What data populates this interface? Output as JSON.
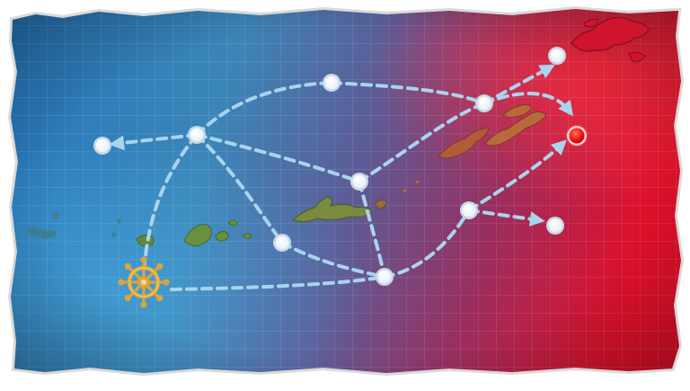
{
  "map": {
    "start_icon": "ship-wheel-icon",
    "boss_icon": "boss-node-icon",
    "colors": {
      "sea_left": "#2a7fc2",
      "sea_mid": "#6a4f8f",
      "sea_right": "#e0102a",
      "route": "#a9d4ee",
      "node_fill": "#ffffff",
      "node_ring": "#c8d8e6",
      "boss": "#ff2a2a",
      "wheel": "#d9a53f",
      "island_green": "#5f8a3e",
      "island_orange": "#b86a3a",
      "island_red": "#c8122e"
    },
    "nodes": [
      {
        "id": "start",
        "type": "start"
      },
      {
        "id": "n-west",
        "type": "node"
      },
      {
        "id": "n-junction",
        "type": "node"
      },
      {
        "id": "n-north",
        "type": "node"
      },
      {
        "id": "n-northeast",
        "type": "node"
      },
      {
        "id": "n-far-northeast",
        "type": "node"
      },
      {
        "id": "n-center",
        "type": "node"
      },
      {
        "id": "n-south-west",
        "type": "node"
      },
      {
        "id": "n-south",
        "type": "node"
      },
      {
        "id": "n-east",
        "type": "node"
      },
      {
        "id": "n-southeast",
        "type": "node"
      },
      {
        "id": "boss",
        "type": "boss"
      }
    ]
  }
}
